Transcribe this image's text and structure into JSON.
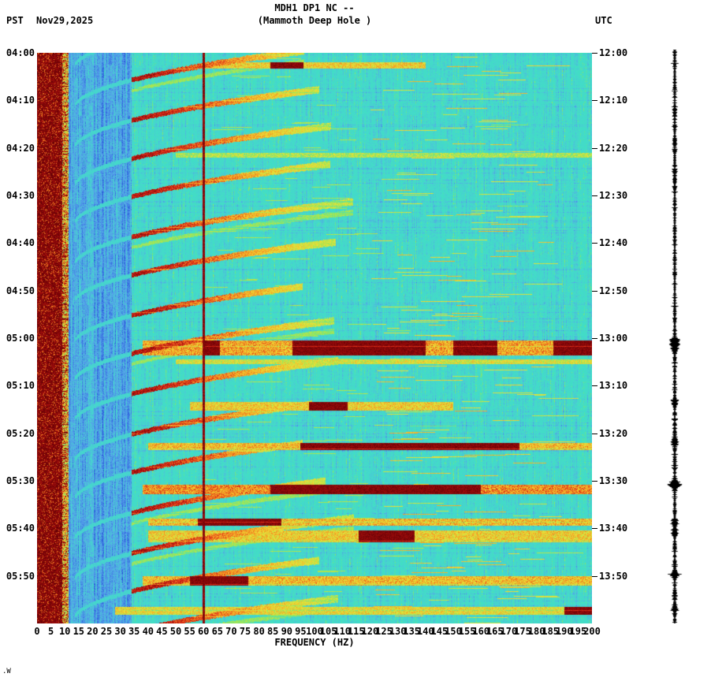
{
  "header": {
    "title_line1": "MDH1 DP1 NC --",
    "title_line2": "(Mammoth Deep Hole )",
    "left_tz": "PST",
    "date": "Nov29,2025",
    "right_tz": "UTC"
  },
  "axes": {
    "xlabel": "FREQUENCY (HZ)",
    "left_ticks": [
      "04:00",
      "04:10",
      "04:20",
      "04:30",
      "04:40",
      "04:50",
      "05:00",
      "05:10",
      "05:20",
      "05:30",
      "05:40",
      "05:50"
    ],
    "right_ticks": [
      "12:00",
      "12:10",
      "12:20",
      "12:30",
      "12:40",
      "12:50",
      "13:00",
      "13:10",
      "13:20",
      "13:30",
      "13:40",
      "13:50"
    ],
    "freq_ticks": [
      "0",
      "5",
      "10",
      "15",
      "20",
      "25",
      "30",
      "35",
      "40",
      "45",
      "50",
      "55",
      "60",
      "65",
      "70",
      "75",
      "80",
      "85",
      "90",
      "95",
      "100",
      "105",
      "110",
      "115",
      "120",
      "125",
      "130",
      "135",
      "140",
      "145",
      "150",
      "155",
      "160",
      "165",
      "170",
      "175",
      "180",
      "185",
      "190",
      "195",
      "200"
    ]
  },
  "footer": {
    "mark": ".W"
  },
  "colors": {
    "text": "#000000",
    "background": "#ffffff",
    "trace": "#000000",
    "powerline": "#5a0000"
  },
  "chart_data": {
    "type": "heatmap",
    "subtype": "spectrogram",
    "title": "MDH1 DP1 NC -- (Mammoth Deep Hole )",
    "station": "MDH1 DP1 NC --",
    "station_name": "Mammoth Deep Hole",
    "xlabel": "FREQUENCY (HZ)",
    "x_axis": {
      "min": 0,
      "max": 200,
      "tick_step_hz": 5
    },
    "y_axis_left": {
      "timezone": "PST",
      "date": "Nov29,2025",
      "start": "04:00",
      "end": "06:00",
      "tick_step_min": 10
    },
    "y_axis_right": {
      "timezone": "UTC",
      "start": "12:00",
      "end": "14:00",
      "tick_step_min": 10
    },
    "time_span_min": 120,
    "legend": "off",
    "grid": "off",
    "palette_stops": [
      {
        "v": 0.0,
        "rgb": [
          15,
          25,
          140
        ]
      },
      {
        "v": 0.18,
        "rgb": [
          35,
          80,
          215
        ]
      },
      {
        "v": 0.33,
        "rgb": [
          85,
          160,
          235
        ]
      },
      {
        "v": 0.45,
        "rgb": [
          70,
          215,
          205
        ]
      },
      {
        "v": 0.58,
        "rgb": [
          64,
          224,
          195
        ]
      },
      {
        "v": 0.66,
        "rgb": [
          150,
          230,
          90
        ]
      },
      {
        "v": 0.74,
        "rgb": [
          235,
          225,
          55
        ]
      },
      {
        "v": 0.82,
        "rgb": [
          245,
          150,
          35
        ]
      },
      {
        "v": 0.88,
        "rgb": [
          220,
          45,
          25
        ]
      },
      {
        "v": 0.95,
        "rgb": [
          150,
          10,
          10
        ]
      },
      {
        "v": 1.0,
        "rgb": [
          95,
          0,
          5
        ]
      }
    ],
    "features": {
      "low_freq_band": {
        "f1_hz": 0,
        "f2_hz": 9,
        "level": 0.95,
        "description": "continuous dark-red microseism band 0-9 Hz for the whole 2 hours"
      },
      "transition_band": {
        "f1_hz": 9,
        "f2_hz": 11.5,
        "level": 0.8
      },
      "blue_zone": {
        "f1_hz": 11.5,
        "f2_hz": 34,
        "level": 0.34,
        "description": "blue low-energy zone with light diagonal glide streaks"
      },
      "powerline_hz": 60,
      "powerline_level": 0.95,
      "arc_t_base_min": [
        3.5,
        12,
        20.5,
        28.5,
        36.5,
        45,
        53,
        61.5,
        69.5,
        78,
        86.5,
        94.5,
        103,
        111.5,
        119.5,
        128
      ],
      "arc_duration_min": 13,
      "arc_f_start_hz": 13,
      "arc_f_max_hz": 105,
      "arc_level": 0.9,
      "events": [
        {
          "t": 2.0,
          "dur": 1.2,
          "f1": 60,
          "f2": 140,
          "v": 0.76,
          "dark": [
            [
              84,
              96
            ]
          ]
        },
        {
          "t": 21.0,
          "dur": 0.8,
          "f1": 50,
          "f2": 200,
          "v": 0.68,
          "dark": []
        },
        {
          "t": 60.5,
          "dur": 3.0,
          "f1": 38,
          "f2": 200,
          "v": 0.8,
          "dark": [
            [
              60,
              66
            ],
            [
              92,
              140
            ],
            [
              150,
              166
            ],
            [
              186,
              200
            ]
          ]
        },
        {
          "t": 64.5,
          "dur": 0.8,
          "f1": 50,
          "f2": 200,
          "v": 0.72,
          "dark": []
        },
        {
          "t": 73.5,
          "dur": 1.5,
          "f1": 55,
          "f2": 150,
          "v": 0.76,
          "dark": [
            [
              98,
              112
            ]
          ]
        },
        {
          "t": 82.0,
          "dur": 1.4,
          "f1": 40,
          "f2": 200,
          "v": 0.78,
          "dark": [
            [
              95,
              174
            ]
          ]
        },
        {
          "t": 90.8,
          "dur": 1.8,
          "f1": 38,
          "f2": 200,
          "v": 0.82,
          "dark": [
            [
              84,
              160
            ]
          ]
        },
        {
          "t": 98.0,
          "dur": 1.2,
          "f1": 40,
          "f2": 200,
          "v": 0.78,
          "dark": [
            [
              58,
              88
            ]
          ]
        },
        {
          "t": 100.5,
          "dur": 2.3,
          "f1": 40,
          "f2": 200,
          "v": 0.76,
          "dark": [
            [
              116,
              136
            ]
          ]
        },
        {
          "t": 110.0,
          "dur": 1.8,
          "f1": 38,
          "f2": 200,
          "v": 0.78,
          "dark": [
            [
              55,
              76
            ]
          ]
        },
        {
          "t": 116.5,
          "dur": 1.5,
          "f1": 28,
          "f2": 200,
          "v": 0.74,
          "dark": [
            [
              190,
              200
            ]
          ]
        }
      ],
      "seismogram_spikes": [
        [
          61,
          7
        ],
        [
          62.5,
          3
        ],
        [
          73.5,
          2.5
        ],
        [
          82,
          3.5
        ],
        [
          91,
          8
        ],
        [
          99,
          3.5
        ],
        [
          101,
          3
        ],
        [
          110,
          4
        ],
        [
          117,
          2.5
        ]
      ]
    }
  }
}
